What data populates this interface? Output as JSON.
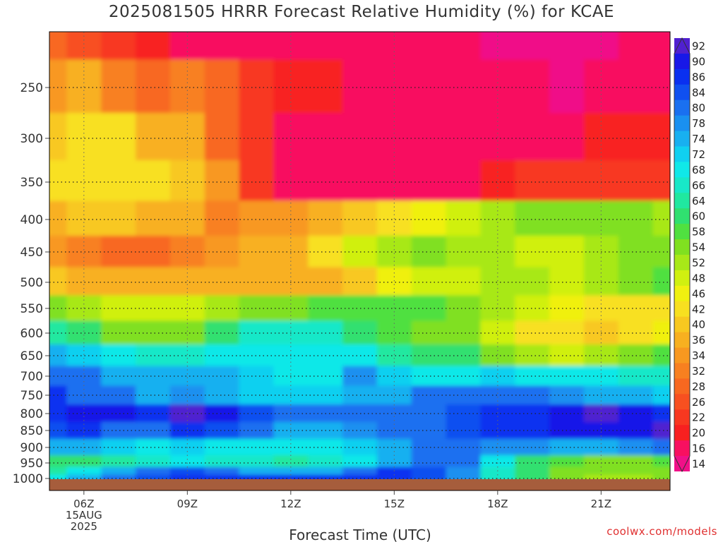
{
  "title": "2025081505 HRRR Forecast Relative Humidity (%) for KCAE",
  "credit": "coolwx.com/models",
  "chart_data": {
    "type": "heatmap",
    "title": "2025081505 HRRR Forecast Relative Humidity (%) for KCAE",
    "xlabel": "Forecast Time (UTC)",
    "ylabel": "",
    "x_unit": "hour UTC, 15 AUG 2025",
    "xlim": [
      5,
      23
    ],
    "y_unit": "hPa",
    "ylim": [
      1000,
      200
    ],
    "x_ticks": [
      {
        "value": 6,
        "lines": [
          "06Z",
          "15AUG",
          "2025"
        ]
      },
      {
        "value": 9,
        "lines": [
          "09Z"
        ]
      },
      {
        "value": 12,
        "lines": [
          "12Z"
        ]
      },
      {
        "value": 15,
        "lines": [
          "15Z"
        ]
      },
      {
        "value": 18,
        "lines": [
          "18Z"
        ]
      },
      {
        "value": 21,
        "lines": [
          "21Z"
        ]
      }
    ],
    "y_ticks": [
      250,
      300,
      350,
      400,
      450,
      500,
      550,
      600,
      650,
      700,
      750,
      800,
      850,
      900,
      950,
      1000
    ],
    "grid": true,
    "colorbar": {
      "labels": [
        92,
        90,
        86,
        84,
        80,
        78,
        74,
        72,
        68,
        66,
        64,
        60,
        58,
        54,
        52,
        48,
        46,
        42,
        40,
        36,
        34,
        32,
        28,
        26,
        22,
        20,
        16,
        14
      ],
      "colors": [
        "#5020d0",
        "#1818e8",
        "#0a30f0",
        "#1050f0",
        "#1a70f0",
        "#1a90f0",
        "#18b0f0",
        "#10d0f0",
        "#10e8e8",
        "#18e8c8",
        "#20e8a0",
        "#30e070",
        "#50e040",
        "#80e020",
        "#a8e818",
        "#d0f010",
        "#f0f010",
        "#f8e020",
        "#f8c820",
        "#f8b020",
        "#f89820",
        "#f88020",
        "#f86820",
        "#f85020",
        "#f83820",
        "#f82020",
        "#f81060",
        "#f01088"
      ]
    },
    "levels_hpa": [
      200,
      250,
      300,
      350,
      400,
      450,
      500,
      550,
      600,
      650,
      700,
      750,
      800,
      850,
      900,
      950,
      975,
      1000
    ],
    "hours_utc": [
      5,
      6,
      7,
      8,
      9,
      10,
      11,
      12,
      13,
      14,
      15,
      16,
      17,
      18,
      19,
      20,
      21,
      22,
      23
    ],
    "rh_percent": [
      [
        28,
        26,
        22,
        20,
        18,
        18,
        16,
        16,
        16,
        16,
        16,
        16,
        16,
        15,
        14,
        15,
        15,
        16,
        16
      ],
      [
        34,
        38,
        32,
        30,
        32,
        28,
        22,
        20,
        20,
        18,
        18,
        18,
        18,
        16,
        16,
        15,
        16,
        17,
        18
      ],
      [
        40,
        44,
        42,
        38,
        36,
        30,
        22,
        18,
        18,
        18,
        17,
        17,
        18,
        18,
        18,
        18,
        20,
        20,
        20
      ],
      [
        42,
        44,
        44,
        42,
        40,
        34,
        24,
        18,
        17,
        16,
        16,
        17,
        18,
        20,
        22,
        22,
        22,
        22,
        24
      ],
      [
        38,
        40,
        40,
        38,
        36,
        32,
        34,
        34,
        36,
        40,
        44,
        46,
        48,
        52,
        54,
        54,
        54,
        54,
        52
      ],
      [
        34,
        33,
        30,
        30,
        32,
        34,
        36,
        38,
        42,
        48,
        52,
        56,
        52,
        52,
        50,
        50,
        52,
        54,
        54
      ],
      [
        40,
        38,
        36,
        36,
        36,
        36,
        38,
        38,
        36,
        40,
        46,
        50,
        50,
        52,
        52,
        50,
        52,
        56,
        58
      ],
      [
        56,
        52,
        48,
        48,
        50,
        52,
        56,
        56,
        58,
        58,
        58,
        58,
        56,
        52,
        48,
        46,
        44,
        44,
        44
      ],
      [
        64,
        60,
        56,
        54,
        56,
        60,
        66,
        66,
        66,
        62,
        58,
        56,
        54,
        48,
        44,
        42,
        40,
        42,
        46
      ],
      [
        76,
        72,
        68,
        66,
        66,
        68,
        70,
        70,
        70,
        68,
        64,
        62,
        60,
        54,
        52,
        50,
        52,
        54,
        58
      ],
      [
        82,
        80,
        76,
        74,
        76,
        76,
        72,
        70,
        70,
        78,
        72,
        70,
        70,
        72,
        70,
        70,
        70,
        66,
        66
      ],
      [
        86,
        82,
        80,
        76,
        78,
        76,
        72,
        72,
        72,
        74,
        74,
        80,
        80,
        82,
        80,
        78,
        76,
        76,
        72
      ],
      [
        88,
        90,
        90,
        88,
        92,
        90,
        84,
        80,
        80,
        80,
        80,
        82,
        84,
        86,
        86,
        90,
        92,
        90,
        88
      ],
      [
        84,
        86,
        82,
        80,
        86,
        84,
        80,
        76,
        76,
        78,
        80,
        82,
        84,
        86,
        88,
        90,
        90,
        90,
        92
      ],
      [
        74,
        74,
        72,
        70,
        72,
        70,
        68,
        68,
        70,
        72,
        74,
        80,
        80,
        78,
        78,
        76,
        76,
        78,
        80
      ],
      [
        60,
        62,
        64,
        66,
        68,
        66,
        66,
        64,
        66,
        68,
        74,
        82,
        82,
        70,
        62,
        58,
        56,
        56,
        58
      ],
      [
        64,
        70,
        74,
        80,
        84,
        80,
        76,
        74,
        76,
        82,
        86,
        84,
        78,
        66,
        60,
        56,
        54,
        54,
        56
      ],
      [
        70,
        76,
        80,
        84,
        86,
        86,
        86,
        86,
        86,
        86,
        86,
        84,
        78,
        66,
        60,
        54,
        52,
        52,
        54
      ]
    ]
  }
}
